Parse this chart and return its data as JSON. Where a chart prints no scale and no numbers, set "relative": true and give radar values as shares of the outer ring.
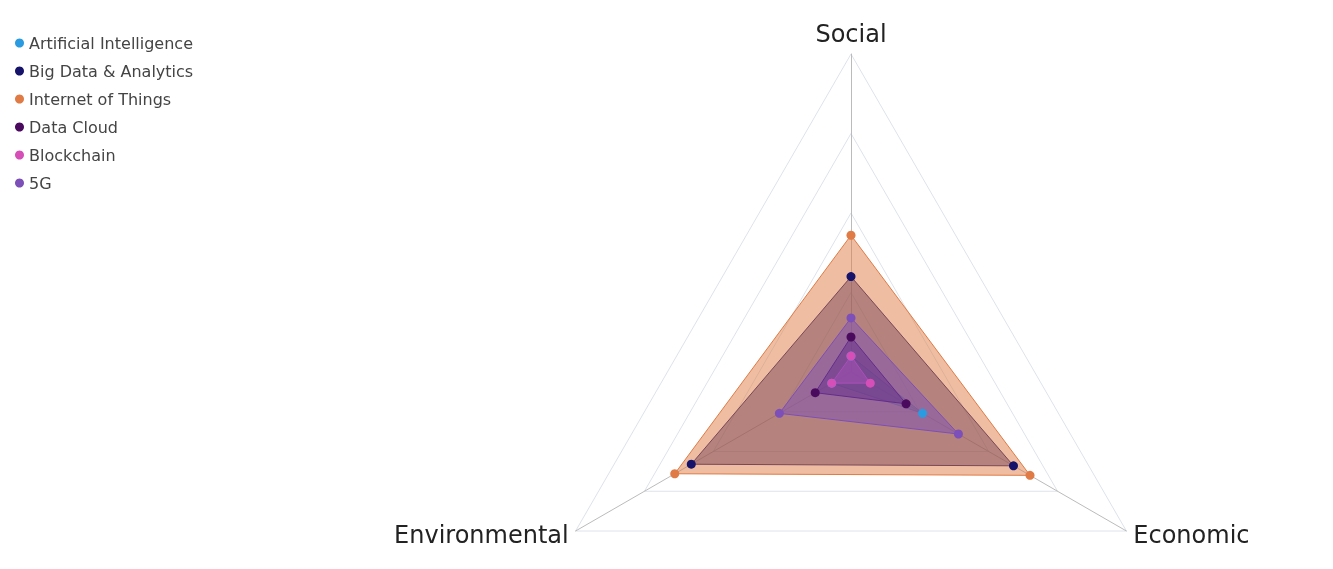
{
  "chart_data": {
    "type": "radar",
    "relative": true,
    "categories": [
      "Social",
      "Economic",
      "Environmental"
    ],
    "series": [
      {
        "name": "Artificial Intelligence",
        "color": "#2a9be0",
        "values": [
          0.05,
          0.26,
          0.07
        ]
      },
      {
        "name": "Big Data & Analytics",
        "color": "#15136a",
        "values": [
          0.3,
          0.59,
          0.58
        ]
      },
      {
        "name": "Internet of Things",
        "color": "#e07b45",
        "values": [
          0.43,
          0.65,
          0.64
        ]
      },
      {
        "name": "Data Cloud",
        "color": "#4a0a5e",
        "values": [
          0.11,
          0.2,
          0.13
        ]
      },
      {
        "name": "Blockchain",
        "color": "#d64fb8",
        "values": [
          0.05,
          0.07,
          0.07
        ]
      },
      {
        "name": "5G",
        "color": "#7d4fb8",
        "values": [
          0.17,
          0.39,
          0.26
        ]
      }
    ],
    "legend": "top left",
    "marker": "circle",
    "grid": true
  }
}
